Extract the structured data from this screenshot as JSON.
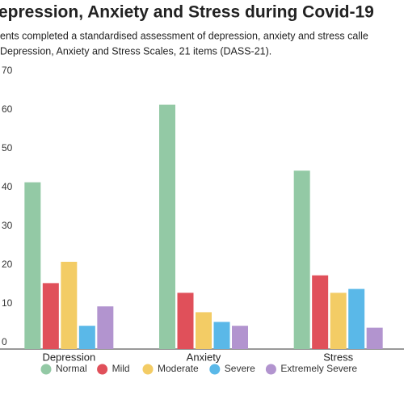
{
  "chart_data": {
    "type": "bar",
    "title": "epression, Anxiety and Stress during Covid-19",
    "subtitle": [
      "ents completed a standardised assessment of depression, anxiety and stress calle",
      "Depression, Anxiety and Stress Scales, 21 items (DASS-21)."
    ],
    "categories": [
      "Depression",
      "Anxiety",
      "Stress"
    ],
    "series": [
      {
        "name": "Normal",
        "color": "#93c9a5",
        "values": [
          43,
          63,
          46
        ]
      },
      {
        "name": "Mild",
        "color": "#e0505a",
        "values": [
          17,
          14.5,
          19
        ]
      },
      {
        "name": "Moderate",
        "color": "#f3cc65",
        "values": [
          22.5,
          9.5,
          14.5
        ]
      },
      {
        "name": "Severe",
        "color": "#5ab8e8",
        "values": [
          6,
          7,
          15.5
        ]
      },
      {
        "name": "Extremely Severe",
        "color": "#b294cf",
        "values": [
          11,
          6,
          5.5
        ]
      }
    ],
    "ylim": [
      0,
      70
    ],
    "yticks": [
      0,
      10,
      20,
      30,
      40,
      50,
      60,
      70
    ]
  }
}
